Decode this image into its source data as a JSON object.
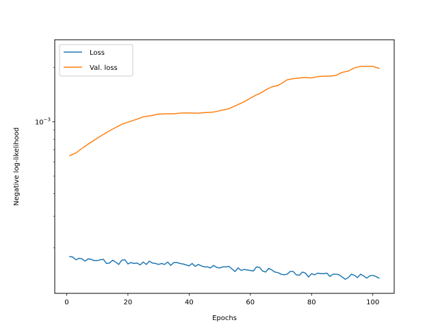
{
  "chart_data": {
    "type": "line",
    "xlabel": "Epochs",
    "ylabel": "Negative log-likelihood",
    "xlim": [
      -3.9,
      107
    ],
    "x_ticks": [
      0,
      20,
      40,
      60,
      80,
      100
    ],
    "x_tick_labels": [
      "0",
      "20",
      "40",
      "60",
      "80",
      "100"
    ],
    "y_scale": "log",
    "ylim": [
      0.000112,
      0.00285
    ],
    "y_major_ticks": [
      {
        "value": 0.001,
        "label": "10",
        "exp": "−3"
      }
    ],
    "legend_position": "upper left",
    "grid": false,
    "colors": {
      "loss": "#1f77b4",
      "val_loss": "#ff7f0e"
    },
    "series": [
      {
        "name": "Loss",
        "x": [
          1,
          2,
          3,
          4,
          5,
          6,
          7,
          8,
          9,
          10,
          11,
          12,
          13,
          14,
          15,
          16,
          17,
          18,
          19,
          20,
          21,
          22,
          23,
          24,
          25,
          26,
          27,
          28,
          29,
          30,
          31,
          32,
          33,
          34,
          35,
          36,
          37,
          38,
          39,
          40,
          41,
          42,
          43,
          44,
          45,
          46,
          47,
          48,
          49,
          50,
          51,
          52,
          53,
          54,
          55,
          56,
          57,
          58,
          59,
          60,
          61,
          62,
          63,
          64,
          65,
          66,
          67,
          68,
          69,
          70,
          71,
          72,
          73,
          74,
          75,
          76,
          77,
          78,
          79,
          80,
          81,
          82,
          83,
          84,
          85,
          86,
          87,
          88,
          89,
          90,
          91,
          92,
          93,
          94,
          95,
          96,
          97,
          98,
          99,
          100,
          101,
          102
        ],
        "values": [
          0.000179,
          0.000178,
          0.000172,
          0.000175,
          0.000174,
          0.000169,
          0.000174,
          0.000173,
          0.00017,
          0.00017,
          0.000172,
          0.000173,
          0.000164,
          0.000165,
          0.000171,
          0.000167,
          0.000162,
          0.000171,
          0.000172,
          0.000163,
          0.000166,
          0.000164,
          0.000165,
          0.000161,
          0.000167,
          0.000162,
          0.000169,
          0.000165,
          0.000164,
          0.000162,
          0.000164,
          0.000162,
          0.000167,
          0.00016,
          0.000166,
          0.000166,
          0.000164,
          0.000163,
          0.000161,
          0.000159,
          0.000164,
          0.000158,
          0.000162,
          0.000159,
          0.000157,
          0.000157,
          0.000155,
          0.00016,
          0.000156,
          0.000155,
          0.000157,
          0.000157,
          0.000158,
          0.000153,
          0.000148,
          0.000155,
          0.00015,
          0.000152,
          0.000151,
          0.00015,
          0.000149,
          0.000157,
          0.000156,
          0.000149,
          0.000147,
          0.000154,
          0.000151,
          0.000147,
          0.000146,
          0.000143,
          0.000142,
          0.000143,
          0.000148,
          0.000148,
          0.000142,
          0.000141,
          0.000147,
          0.000145,
          0.000138,
          0.000144,
          0.000142,
          0.000145,
          0.000144,
          0.000144,
          0.000145,
          0.000139,
          0.000143,
          0.000143,
          0.000142,
          0.000138,
          0.000134,
          0.000137,
          0.000143,
          0.000141,
          0.000137,
          0.000143,
          0.00014,
          0.000136,
          0.00014,
          0.000141,
          0.000139,
          0.000136
        ]
      },
      {
        "name": "Val. loss",
        "x": [
          1,
          3,
          5,
          7,
          10,
          13,
          15,
          18,
          20,
          23,
          25,
          28,
          30,
          33,
          35,
          38,
          40,
          43,
          45,
          48,
          50,
          53,
          55,
          58,
          60,
          62,
          63,
          65,
          67,
          69,
          70,
          72,
          74,
          76,
          78,
          80,
          82,
          84,
          86,
          88,
          90,
          92,
          94,
          96,
          98,
          100,
          102
        ],
        "values": [
          0.00065,
          0.000672,
          0.000712,
          0.000752,
          0.000812,
          0.000872,
          0.000912,
          0.000968,
          0.000995,
          0.001035,
          0.001065,
          0.001085,
          0.001103,
          0.001108,
          0.001108,
          0.00112,
          0.00112,
          0.001116,
          0.001124,
          0.001132,
          0.001152,
          0.001182,
          0.001225,
          0.001292,
          0.001352,
          0.001412,
          0.001432,
          0.001502,
          0.001562,
          0.00159,
          0.001625,
          0.001708,
          0.001735,
          0.00175,
          0.00176,
          0.001752,
          0.00178,
          0.00179,
          0.00179,
          0.00181,
          0.00188,
          0.00191,
          0.00199,
          0.00203,
          0.00203,
          0.00203,
          0.00198
        ]
      }
    ]
  }
}
